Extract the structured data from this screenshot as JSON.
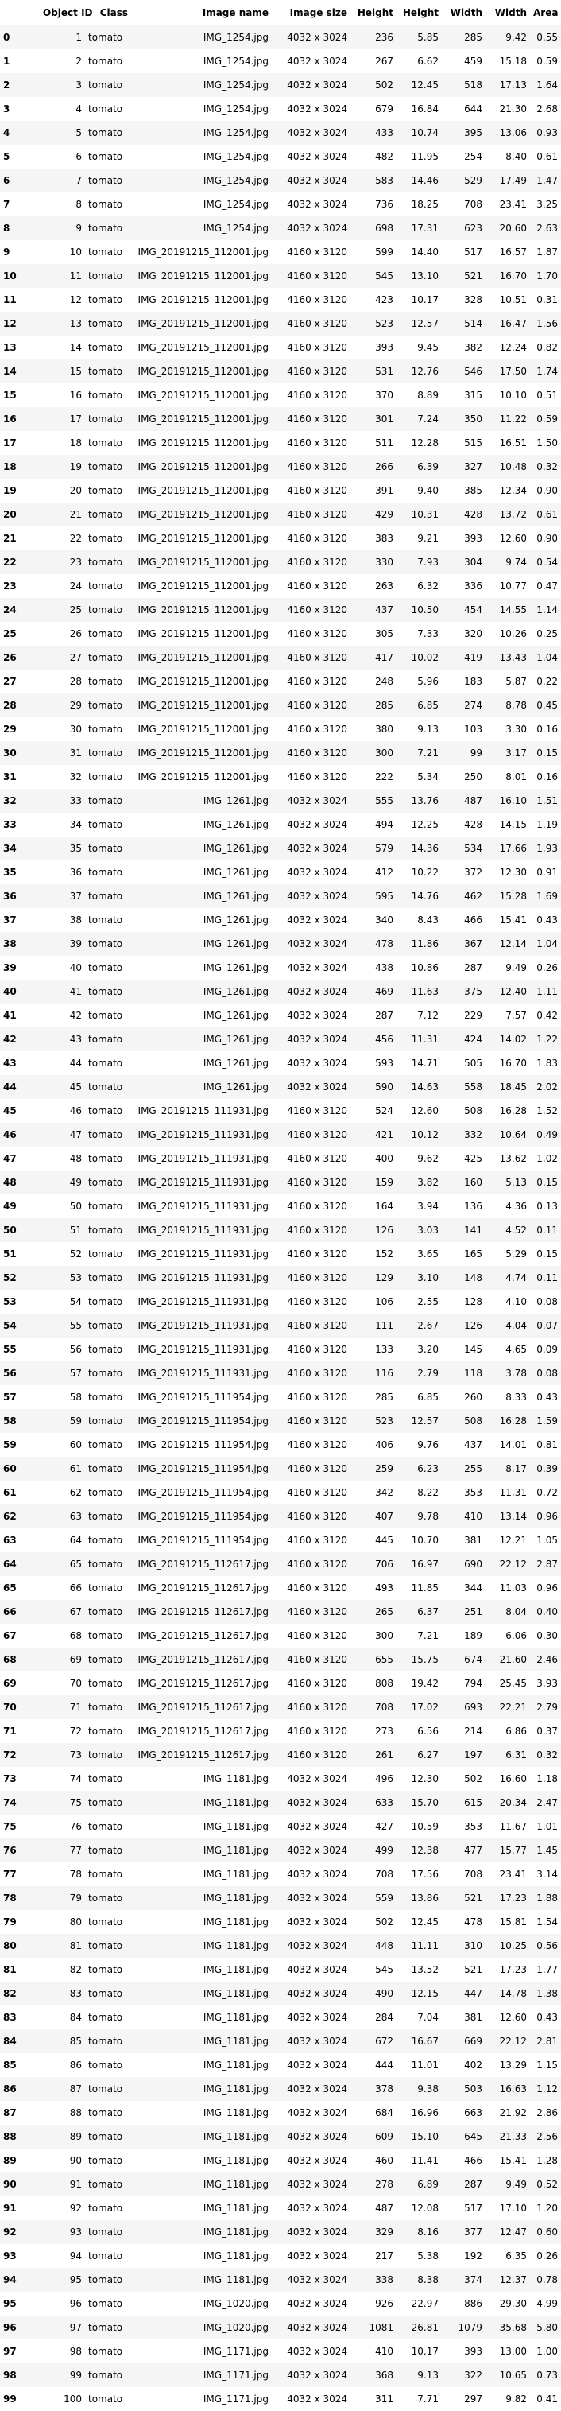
{
  "table": {
    "columns": [
      "",
      "Object ID",
      "Class",
      "Image name",
      "Image size",
      "Height",
      "Height",
      "Width",
      "Width",
      "Area"
    ],
    "rows": [
      [
        "0",
        "1",
        "tomato",
        "IMG_1254.jpg",
        "4032 x 3024",
        "236",
        "5.85",
        "285",
        "9.42",
        "0.55"
      ],
      [
        "1",
        "2",
        "tomato",
        "IMG_1254.jpg",
        "4032 x 3024",
        "267",
        "6.62",
        "459",
        "15.18",
        "0.59"
      ],
      [
        "2",
        "3",
        "tomato",
        "IMG_1254.jpg",
        "4032 x 3024",
        "502",
        "12.45",
        "518",
        "17.13",
        "1.64"
      ],
      [
        "3",
        "4",
        "tomato",
        "IMG_1254.jpg",
        "4032 x 3024",
        "679",
        "16.84",
        "644",
        "21.30",
        "2.68"
      ],
      [
        "4",
        "5",
        "tomato",
        "IMG_1254.jpg",
        "4032 x 3024",
        "433",
        "10.74",
        "395",
        "13.06",
        "0.93"
      ],
      [
        "5",
        "6",
        "tomato",
        "IMG_1254.jpg",
        "4032 x 3024",
        "482",
        "11.95",
        "254",
        "8.40",
        "0.61"
      ],
      [
        "6",
        "7",
        "tomato",
        "IMG_1254.jpg",
        "4032 x 3024",
        "583",
        "14.46",
        "529",
        "17.49",
        "1.47"
      ],
      [
        "7",
        "8",
        "tomato",
        "IMG_1254.jpg",
        "4032 x 3024",
        "736",
        "18.25",
        "708",
        "23.41",
        "3.25"
      ],
      [
        "8",
        "9",
        "tomato",
        "IMG_1254.jpg",
        "4032 x 3024",
        "698",
        "17.31",
        "623",
        "20.60",
        "2.63"
      ],
      [
        "9",
        "10",
        "tomato",
        "IMG_20191215_112001.jpg",
        "4160 x 3120",
        "599",
        "14.40",
        "517",
        "16.57",
        "1.87"
      ],
      [
        "10",
        "11",
        "tomato",
        "IMG_20191215_112001.jpg",
        "4160 x 3120",
        "545",
        "13.10",
        "521",
        "16.70",
        "1.70"
      ],
      [
        "11",
        "12",
        "tomato",
        "IMG_20191215_112001.jpg",
        "4160 x 3120",
        "423",
        "10.17",
        "328",
        "10.51",
        "0.31"
      ],
      [
        "12",
        "13",
        "tomato",
        "IMG_20191215_112001.jpg",
        "4160 x 3120",
        "523",
        "12.57",
        "514",
        "16.47",
        "1.56"
      ],
      [
        "13",
        "14",
        "tomato",
        "IMG_20191215_112001.jpg",
        "4160 x 3120",
        "393",
        "9.45",
        "382",
        "12.24",
        "0.82"
      ],
      [
        "14",
        "15",
        "tomato",
        "IMG_20191215_112001.jpg",
        "4160 x 3120",
        "531",
        "12.76",
        "546",
        "17.50",
        "1.74"
      ],
      [
        "15",
        "16",
        "tomato",
        "IMG_20191215_112001.jpg",
        "4160 x 3120",
        "370",
        "8.89",
        "315",
        "10.10",
        "0.51"
      ],
      [
        "16",
        "17",
        "tomato",
        "IMG_20191215_112001.jpg",
        "4160 x 3120",
        "301",
        "7.24",
        "350",
        "11.22",
        "0.59"
      ],
      [
        "17",
        "18",
        "tomato",
        "IMG_20191215_112001.jpg",
        "4160 x 3120",
        "511",
        "12.28",
        "515",
        "16.51",
        "1.50"
      ],
      [
        "18",
        "19",
        "tomato",
        "IMG_20191215_112001.jpg",
        "4160 x 3120",
        "266",
        "6.39",
        "327",
        "10.48",
        "0.32"
      ],
      [
        "19",
        "20",
        "tomato",
        "IMG_20191215_112001.jpg",
        "4160 x 3120",
        "391",
        "9.40",
        "385",
        "12.34",
        "0.90"
      ],
      [
        "20",
        "21",
        "tomato",
        "IMG_20191215_112001.jpg",
        "4160 x 3120",
        "429",
        "10.31",
        "428",
        "13.72",
        "0.61"
      ],
      [
        "21",
        "22",
        "tomato",
        "IMG_20191215_112001.jpg",
        "4160 x 3120",
        "383",
        "9.21",
        "393",
        "12.60",
        "0.90"
      ],
      [
        "22",
        "23",
        "tomato",
        "IMG_20191215_112001.jpg",
        "4160 x 3120",
        "330",
        "7.93",
        "304",
        "9.74",
        "0.54"
      ],
      [
        "23",
        "24",
        "tomato",
        "IMG_20191215_112001.jpg",
        "4160 x 3120",
        "263",
        "6.32",
        "336",
        "10.77",
        "0.47"
      ],
      [
        "24",
        "25",
        "tomato",
        "IMG_20191215_112001.jpg",
        "4160 x 3120",
        "437",
        "10.50",
        "454",
        "14.55",
        "1.14"
      ],
      [
        "25",
        "26",
        "tomato",
        "IMG_20191215_112001.jpg",
        "4160 x 3120",
        "305",
        "7.33",
        "320",
        "10.26",
        "0.25"
      ],
      [
        "26",
        "27",
        "tomato",
        "IMG_20191215_112001.jpg",
        "4160 x 3120",
        "417",
        "10.02",
        "419",
        "13.43",
        "1.04"
      ],
      [
        "27",
        "28",
        "tomato",
        "IMG_20191215_112001.jpg",
        "4160 x 3120",
        "248",
        "5.96",
        "183",
        "5.87",
        "0.22"
      ],
      [
        "28",
        "29",
        "tomato",
        "IMG_20191215_112001.jpg",
        "4160 x 3120",
        "285",
        "6.85",
        "274",
        "8.78",
        "0.45"
      ],
      [
        "29",
        "30",
        "tomato",
        "IMG_20191215_112001.jpg",
        "4160 x 3120",
        "380",
        "9.13",
        "103",
        "3.30",
        "0.16"
      ],
      [
        "30",
        "31",
        "tomato",
        "IMG_20191215_112001.jpg",
        "4160 x 3120",
        "300",
        "7.21",
        "99",
        "3.17",
        "0.15"
      ],
      [
        "31",
        "32",
        "tomato",
        "IMG_20191215_112001.jpg",
        "4160 x 3120",
        "222",
        "5.34",
        "250",
        "8.01",
        "0.16"
      ],
      [
        "32",
        "33",
        "tomato",
        "IMG_1261.jpg",
        "4032 x 3024",
        "555",
        "13.76",
        "487",
        "16.10",
        "1.51"
      ],
      [
        "33",
        "34",
        "tomato",
        "IMG_1261.jpg",
        "4032 x 3024",
        "494",
        "12.25",
        "428",
        "14.15",
        "1.19"
      ],
      [
        "34",
        "35",
        "tomato",
        "IMG_1261.jpg",
        "4032 x 3024",
        "579",
        "14.36",
        "534",
        "17.66",
        "1.93"
      ],
      [
        "35",
        "36",
        "tomato",
        "IMG_1261.jpg",
        "4032 x 3024",
        "412",
        "10.22",
        "372",
        "12.30",
        "0.91"
      ],
      [
        "36",
        "37",
        "tomato",
        "IMG_1261.jpg",
        "4032 x 3024",
        "595",
        "14.76",
        "462",
        "15.28",
        "1.69"
      ],
      [
        "37",
        "38",
        "tomato",
        "IMG_1261.jpg",
        "4032 x 3024",
        "340",
        "8.43",
        "466",
        "15.41",
        "0.43"
      ],
      [
        "38",
        "39",
        "tomato",
        "IMG_1261.jpg",
        "4032 x 3024",
        "478",
        "11.86",
        "367",
        "12.14",
        "1.04"
      ],
      [
        "39",
        "40",
        "tomato",
        "IMG_1261.jpg",
        "4032 x 3024",
        "438",
        "10.86",
        "287",
        "9.49",
        "0.26"
      ],
      [
        "40",
        "41",
        "tomato",
        "IMG_1261.jpg",
        "4032 x 3024",
        "469",
        "11.63",
        "375",
        "12.40",
        "1.11"
      ],
      [
        "41",
        "42",
        "tomato",
        "IMG_1261.jpg",
        "4032 x 3024",
        "287",
        "7.12",
        "229",
        "7.57",
        "0.42"
      ],
      [
        "42",
        "43",
        "tomato",
        "IMG_1261.jpg",
        "4032 x 3024",
        "456",
        "11.31",
        "424",
        "14.02",
        "1.22"
      ],
      [
        "43",
        "44",
        "tomato",
        "IMG_1261.jpg",
        "4032 x 3024",
        "593",
        "14.71",
        "505",
        "16.70",
        "1.83"
      ],
      [
        "44",
        "45",
        "tomato",
        "IMG_1261.jpg",
        "4032 x 3024",
        "590",
        "14.63",
        "558",
        "18.45",
        "2.02"
      ],
      [
        "45",
        "46",
        "tomato",
        "IMG_20191215_111931.jpg",
        "4160 x 3120",
        "524",
        "12.60",
        "508",
        "16.28",
        "1.52"
      ],
      [
        "46",
        "47",
        "tomato",
        "IMG_20191215_111931.jpg",
        "4160 x 3120",
        "421",
        "10.12",
        "332",
        "10.64",
        "0.49"
      ],
      [
        "47",
        "48",
        "tomato",
        "IMG_20191215_111931.jpg",
        "4160 x 3120",
        "400",
        "9.62",
        "425",
        "13.62",
        "1.02"
      ],
      [
        "48",
        "49",
        "tomato",
        "IMG_20191215_111931.jpg",
        "4160 x 3120",
        "159",
        "3.82",
        "160",
        "5.13",
        "0.15"
      ],
      [
        "49",
        "50",
        "tomato",
        "IMG_20191215_111931.jpg",
        "4160 x 3120",
        "164",
        "3.94",
        "136",
        "4.36",
        "0.13"
      ],
      [
        "50",
        "51",
        "tomato",
        "IMG_20191215_111931.jpg",
        "4160 x 3120",
        "126",
        "3.03",
        "141",
        "4.52",
        "0.11"
      ],
      [
        "51",
        "52",
        "tomato",
        "IMG_20191215_111931.jpg",
        "4160 x 3120",
        "152",
        "3.65",
        "165",
        "5.29",
        "0.15"
      ],
      [
        "52",
        "53",
        "tomato",
        "IMG_20191215_111931.jpg",
        "4160 x 3120",
        "129",
        "3.10",
        "148",
        "4.74",
        "0.11"
      ],
      [
        "53",
        "54",
        "tomato",
        "IMG_20191215_111931.jpg",
        "4160 x 3120",
        "106",
        "2.55",
        "128",
        "4.10",
        "0.08"
      ],
      [
        "54",
        "55",
        "tomato",
        "IMG_20191215_111931.jpg",
        "4160 x 3120",
        "111",
        "2.67",
        "126",
        "4.04",
        "0.07"
      ],
      [
        "55",
        "56",
        "tomato",
        "IMG_20191215_111931.jpg",
        "4160 x 3120",
        "133",
        "3.20",
        "145",
        "4.65",
        "0.09"
      ],
      [
        "56",
        "57",
        "tomato",
        "IMG_20191215_111931.jpg",
        "4160 x 3120",
        "116",
        "2.79",
        "118",
        "3.78",
        "0.08"
      ],
      [
        "57",
        "58",
        "tomato",
        "IMG_20191215_111954.jpg",
        "4160 x 3120",
        "285",
        "6.85",
        "260",
        "8.33",
        "0.43"
      ],
      [
        "58",
        "59",
        "tomato",
        "IMG_20191215_111954.jpg",
        "4160 x 3120",
        "523",
        "12.57",
        "508",
        "16.28",
        "1.59"
      ],
      [
        "59",
        "60",
        "tomato",
        "IMG_20191215_111954.jpg",
        "4160 x 3120",
        "406",
        "9.76",
        "437",
        "14.01",
        "0.81"
      ],
      [
        "60",
        "61",
        "tomato",
        "IMG_20191215_111954.jpg",
        "4160 x 3120",
        "259",
        "6.23",
        "255",
        "8.17",
        "0.39"
      ],
      [
        "61",
        "62",
        "tomato",
        "IMG_20191215_111954.jpg",
        "4160 x 3120",
        "342",
        "8.22",
        "353",
        "11.31",
        "0.72"
      ],
      [
        "62",
        "63",
        "tomato",
        "IMG_20191215_111954.jpg",
        "4160 x 3120",
        "407",
        "9.78",
        "410",
        "13.14",
        "0.96"
      ],
      [
        "63",
        "64",
        "tomato",
        "IMG_20191215_111954.jpg",
        "4160 x 3120",
        "445",
        "10.70",
        "381",
        "12.21",
        "1.05"
      ],
      [
        "64",
        "65",
        "tomato",
        "IMG_20191215_112617.jpg",
        "4160 x 3120",
        "706",
        "16.97",
        "690",
        "22.12",
        "2.87"
      ],
      [
        "65",
        "66",
        "tomato",
        "IMG_20191215_112617.jpg",
        "4160 x 3120",
        "493",
        "11.85",
        "344",
        "11.03",
        "0.96"
      ],
      [
        "66",
        "67",
        "tomato",
        "IMG_20191215_112617.jpg",
        "4160 x 3120",
        "265",
        "6.37",
        "251",
        "8.04",
        "0.40"
      ],
      [
        "67",
        "68",
        "tomato",
        "IMG_20191215_112617.jpg",
        "4160 x 3120",
        "300",
        "7.21",
        "189",
        "6.06",
        "0.30"
      ],
      [
        "68",
        "69",
        "tomato",
        "IMG_20191215_112617.jpg",
        "4160 x 3120",
        "655",
        "15.75",
        "674",
        "21.60",
        "2.46"
      ],
      [
        "69",
        "70",
        "tomato",
        "IMG_20191215_112617.jpg",
        "4160 x 3120",
        "808",
        "19.42",
        "794",
        "25.45",
        "3.93"
      ],
      [
        "70",
        "71",
        "tomato",
        "IMG_20191215_112617.jpg",
        "4160 x 3120",
        "708",
        "17.02",
        "693",
        "22.21",
        "2.79"
      ],
      [
        "71",
        "72",
        "tomato",
        "IMG_20191215_112617.jpg",
        "4160 x 3120",
        "273",
        "6.56",
        "214",
        "6.86",
        "0.37"
      ],
      [
        "72",
        "73",
        "tomato",
        "IMG_20191215_112617.jpg",
        "4160 x 3120",
        "261",
        "6.27",
        "197",
        "6.31",
        "0.32"
      ],
      [
        "73",
        "74",
        "tomato",
        "IMG_1181.jpg",
        "4032 x 3024",
        "496",
        "12.30",
        "502",
        "16.60",
        "1.18"
      ],
      [
        "74",
        "75",
        "tomato",
        "IMG_1181.jpg",
        "4032 x 3024",
        "633",
        "15.70",
        "615",
        "20.34",
        "2.47"
      ],
      [
        "75",
        "76",
        "tomato",
        "IMG_1181.jpg",
        "4032 x 3024",
        "427",
        "10.59",
        "353",
        "11.67",
        "1.01"
      ],
      [
        "76",
        "77",
        "tomato",
        "IMG_1181.jpg",
        "4032 x 3024",
        "499",
        "12.38",
        "477",
        "15.77",
        "1.45"
      ],
      [
        "77",
        "78",
        "tomato",
        "IMG_1181.jpg",
        "4032 x 3024",
        "708",
        "17.56",
        "708",
        "23.41",
        "3.14"
      ],
      [
        "78",
        "79",
        "tomato",
        "IMG_1181.jpg",
        "4032 x 3024",
        "559",
        "13.86",
        "521",
        "17.23",
        "1.88"
      ],
      [
        "79",
        "80",
        "tomato",
        "IMG_1181.jpg",
        "4032 x 3024",
        "502",
        "12.45",
        "478",
        "15.81",
        "1.54"
      ],
      [
        "80",
        "81",
        "tomato",
        "IMG_1181.jpg",
        "4032 x 3024",
        "448",
        "11.11",
        "310",
        "10.25",
        "0.56"
      ],
      [
        "81",
        "82",
        "tomato",
        "IMG_1181.jpg",
        "4032 x 3024",
        "545",
        "13.52",
        "521",
        "17.23",
        "1.77"
      ],
      [
        "82",
        "83",
        "tomato",
        "IMG_1181.jpg",
        "4032 x 3024",
        "490",
        "12.15",
        "447",
        "14.78",
        "1.38"
      ],
      [
        "83",
        "84",
        "tomato",
        "IMG_1181.jpg",
        "4032 x 3024",
        "284",
        "7.04",
        "381",
        "12.60",
        "0.43"
      ],
      [
        "84",
        "85",
        "tomato",
        "IMG_1181.jpg",
        "4032 x 3024",
        "672",
        "16.67",
        "669",
        "22.12",
        "2.81"
      ],
      [
        "85",
        "86",
        "tomato",
        "IMG_1181.jpg",
        "4032 x 3024",
        "444",
        "11.01",
        "402",
        "13.29",
        "1.15"
      ],
      [
        "86",
        "87",
        "tomato",
        "IMG_1181.jpg",
        "4032 x 3024",
        "378",
        "9.38",
        "503",
        "16.63",
        "1.12"
      ],
      [
        "87",
        "88",
        "tomato",
        "IMG_1181.jpg",
        "4032 x 3024",
        "684",
        "16.96",
        "663",
        "21.92",
        "2.86"
      ],
      [
        "88",
        "89",
        "tomato",
        "IMG_1181.jpg",
        "4032 x 3024",
        "609",
        "15.10",
        "645",
        "21.33",
        "2.56"
      ],
      [
        "89",
        "90",
        "tomato",
        "IMG_1181.jpg",
        "4032 x 3024",
        "460",
        "11.41",
        "466",
        "15.41",
        "1.28"
      ],
      [
        "90",
        "91",
        "tomato",
        "IMG_1181.jpg",
        "4032 x 3024",
        "278",
        "6.89",
        "287",
        "9.49",
        "0.52"
      ],
      [
        "91",
        "92",
        "tomato",
        "IMG_1181.jpg",
        "4032 x 3024",
        "487",
        "12.08",
        "517",
        "17.10",
        "1.20"
      ],
      [
        "92",
        "93",
        "tomato",
        "IMG_1181.jpg",
        "4032 x 3024",
        "329",
        "8.16",
        "377",
        "12.47",
        "0.60"
      ],
      [
        "93",
        "94",
        "tomato",
        "IMG_1181.jpg",
        "4032 x 3024",
        "217",
        "5.38",
        "192",
        "6.35",
        "0.26"
      ],
      [
        "94",
        "95",
        "tomato",
        "IMG_1181.jpg",
        "4032 x 3024",
        "338",
        "8.38",
        "374",
        "12.37",
        "0.78"
      ],
      [
        "95",
        "96",
        "tomato",
        "IMG_1020.jpg",
        "4032 x 3024",
        "926",
        "22.97",
        "886",
        "29.30",
        "4.99"
      ],
      [
        "96",
        "97",
        "tomato",
        "IMG_1020.jpg",
        "4032 x 3024",
        "1081",
        "26.81",
        "1079",
        "35.68",
        "5.80"
      ],
      [
        "97",
        "98",
        "tomato",
        "IMG_1171.jpg",
        "4032 x 3024",
        "410",
        "10.17",
        "393",
        "13.00",
        "1.00"
      ],
      [
        "98",
        "99",
        "tomato",
        "IMG_1171.jpg",
        "4032 x 3024",
        "368",
        "9.13",
        "322",
        "10.65",
        "0.73"
      ],
      [
        "99",
        "100",
        "tomato",
        "IMG_1171.jpg",
        "4032 x 3024",
        "311",
        "7.71",
        "297",
        "9.82",
        "0.41"
      ]
    ]
  }
}
